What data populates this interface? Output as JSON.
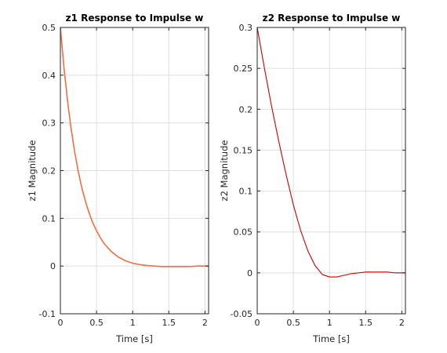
{
  "chart_data": [
    {
      "type": "line",
      "title": "z1 Response to Impulse w",
      "xlabel": "Time [s]",
      "ylabel": "z1 Magnitude",
      "xlim": [
        0,
        2.05
      ],
      "ylim": [
        -0.1,
        0.5
      ],
      "xticks": [
        0,
        0.5,
        1,
        1.5,
        2
      ],
      "xtick_labels": [
        "0",
        "0.5",
        "1",
        "1.5",
        "2"
      ],
      "yticks": [
        -0.1,
        0,
        0.1,
        0.2,
        0.3,
        0.4,
        0.5
      ],
      "ytick_labels": [
        "-0.1",
        "0",
        "0.1",
        "0.2",
        "0.3",
        "0.4",
        "0.5"
      ],
      "grid": true,
      "color": "#f46d43",
      "series": [
        {
          "x": [
            0,
            0.05,
            0.1,
            0.15,
            0.2,
            0.25,
            0.3,
            0.35,
            0.4,
            0.45,
            0.5,
            0.55,
            0.6,
            0.7,
            0.8,
            0.9,
            1.0,
            1.1,
            1.2,
            1.3,
            1.4,
            1.5,
            1.6,
            1.7,
            1.8,
            1.9,
            2.0,
            2.05
          ],
          "y": [
            0.5,
            0.415,
            0.345,
            0.286,
            0.237,
            0.196,
            0.162,
            0.134,
            0.11,
            0.09,
            0.074,
            0.06,
            0.048,
            0.031,
            0.019,
            0.011,
            0.006,
            0.003,
            0.001,
            0.0,
            -0.001,
            -0.001,
            -0.001,
            -0.001,
            -0.001,
            0.0,
            0.0,
            0.0
          ]
        }
      ]
    },
    {
      "type": "line",
      "title": "z2 Response to Impulse w",
      "xlabel": "Time [s]",
      "ylabel": "z2 Magnitude",
      "xlim": [
        0,
        2.05
      ],
      "ylim": [
        -0.05,
        0.3
      ],
      "xticks": [
        0,
        0.5,
        1,
        1.5,
        2
      ],
      "xtick_labels": [
        "0",
        "0.5",
        "1",
        "1.5",
        "2"
      ],
      "yticks": [
        -0.05,
        0,
        0.05,
        0.1,
        0.15,
        0.2,
        0.25,
        0.3
      ],
      "ytick_labels": [
        "-0.05",
        "0",
        "0.05",
        "0.1",
        "0.15",
        "0.2",
        "0.25",
        "0.3"
      ],
      "grid": true,
      "color": "#cc0000",
      "series": [
        {
          "x": [
            0,
            0.1,
            0.2,
            0.3,
            0.4,
            0.5,
            0.6,
            0.7,
            0.8,
            0.9,
            1.0,
            1.1,
            1.2,
            1.3,
            1.4,
            1.5,
            1.6,
            1.7,
            1.8,
            1.9,
            2.0,
            2.05
          ],
          "y": [
            0.3,
            0.25,
            0.203,
            0.16,
            0.12,
            0.083,
            0.052,
            0.027,
            0.009,
            -0.002,
            -0.005,
            -0.005,
            -0.003,
            -0.001,
            0.0,
            0.001,
            0.001,
            0.001,
            0.001,
            0.0,
            0.0,
            0.0
          ]
        }
      ]
    }
  ]
}
